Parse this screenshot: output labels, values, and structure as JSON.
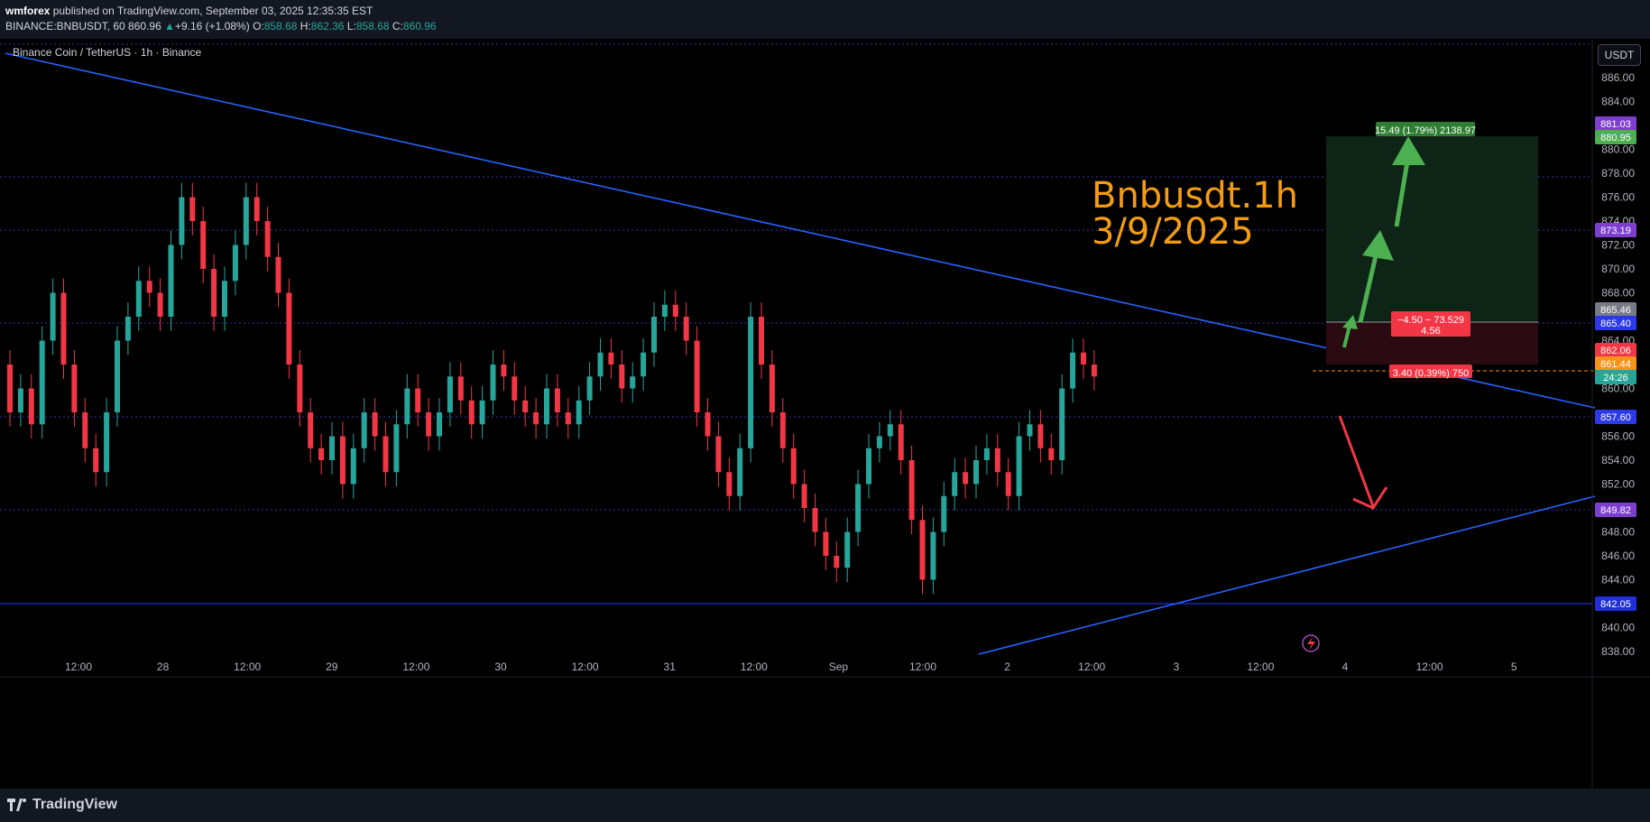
{
  "header": {
    "publisher": "wmforex",
    "published_text": "published on TradingView.com, September 03, 2025 12:35:35 EST",
    "symbol": "BINANCE:BNBUSDT, 60",
    "last": "860.96",
    "change": "+9.16 (+1.08%)",
    "o_label": "O:",
    "o": "858.68",
    "h_label": "H:",
    "h": "862.36",
    "l_label": "L:",
    "l": "858.68",
    "c_label": "C:",
    "c": "860.96"
  },
  "chart": {
    "symbol_title": "Binance Coin / TetherUS · 1h · Binance",
    "currency_button": "USDT",
    "annotation_line1": "Bnbusdt.1h",
    "annotation_line2": "3/9/2025",
    "y_ticks": [
      "886.00",
      "884.00",
      "880.00",
      "878.00",
      "876.00",
      "874.00",
      "872.00",
      "870.00",
      "868.00",
      "864.00",
      "860.00",
      "856.00",
      "854.00",
      "852.00",
      "848.00",
      "846.00",
      "844.00",
      "840.00",
      "838.00"
    ],
    "x_ticks": [
      "12:00",
      "28",
      "12:00",
      "29",
      "12:00",
      "30",
      "12:00",
      "31",
      "12:00",
      "Sep",
      "12:00",
      "2",
      "12:00",
      "3",
      "12:00",
      "4",
      "12:00",
      "5"
    ],
    "price_labels": [
      {
        "text": "881.03",
        "color": "#7e3fd1"
      },
      {
        "text": "880.95",
        "color": "#4caf50"
      },
      {
        "text": "873.19",
        "color": "#7e3fd1"
      },
      {
        "text": "865.46",
        "color": "#787b86"
      },
      {
        "text": "865.40",
        "color": "#2b39e8"
      },
      {
        "text": "862.06",
        "color": "#f23645"
      },
      {
        "text": "861.44",
        "color": "#f7931a"
      },
      {
        "text": "24:26",
        "color": "#26a69a"
      },
      {
        "text": "857.60",
        "color": "#2b39e8"
      },
      {
        "text": "849.82",
        "color": "#7e3fd1"
      },
      {
        "text": "842.05",
        "color": "#1f2fd8"
      }
    ],
    "target_label": "15.49 (1.79%) 2138.97",
    "stop_label_line1": "−4.50 − 73.529",
    "stop_label_line2": "4.56",
    "entry_label": "3.40 (0.39%) 750",
    "colors": {
      "up": "#26a69a",
      "down": "#f23645",
      "trendline": "#2962ff",
      "arrow_green": "#4caf50",
      "arrow_red": "#f23645"
    }
  },
  "footer": {
    "brand": "TradingView"
  }
}
